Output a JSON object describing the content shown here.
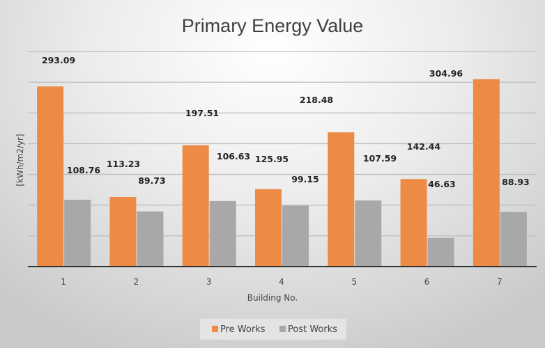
{
  "chart_data": {
    "type": "bar",
    "title": "Primary Energy Value",
    "xlabel": "Building No.",
    "ylabel": "[kWh/m2/yr]",
    "categories": [
      "1",
      "2",
      "3",
      "4",
      "5",
      "6",
      "7"
    ],
    "series": [
      {
        "name": "Pre Works",
        "color": "#ed8a45",
        "values": [
          293.09,
          113.23,
          197.51,
          125.95,
          218.48,
          142.44,
          304.96
        ]
      },
      {
        "name": "Post Works",
        "color": "#a8a8a8",
        "values": [
          108.76,
          89.73,
          106.63,
          99.15,
          107.59,
          46.63,
          88.93
        ]
      }
    ],
    "ylim": [
      0,
      350
    ],
    "ygrid_step": 50,
    "grid": true,
    "y_tick_labels_shown": false,
    "legend": "bottom"
  }
}
